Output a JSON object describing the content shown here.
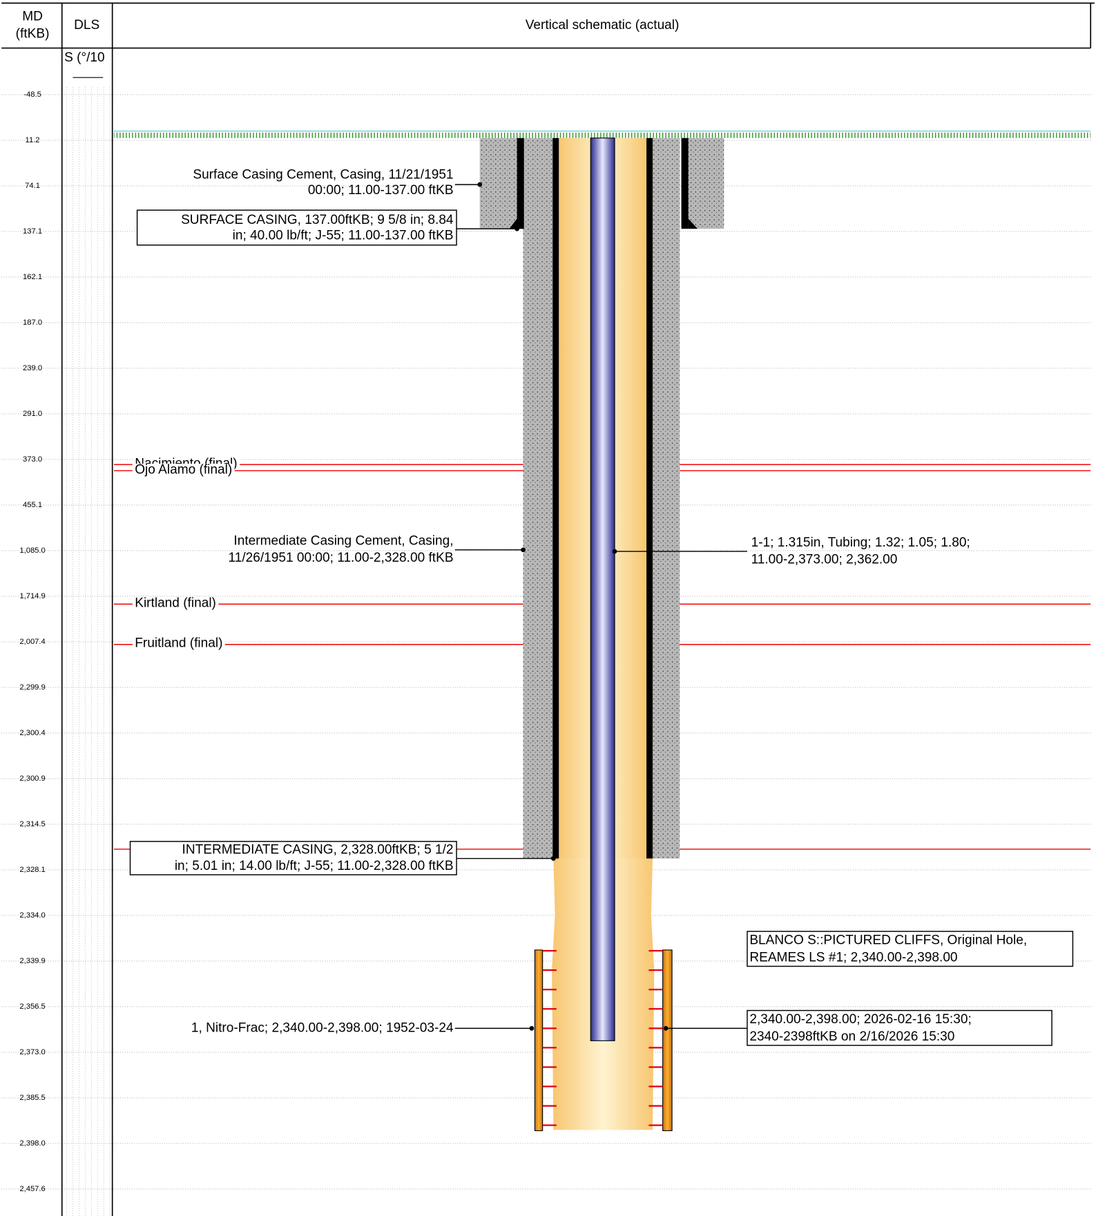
{
  "header": {
    "md_label": [
      "MD",
      "(ftKB)"
    ],
    "dls_label": "DLS",
    "schematic_title": "Vertical schematic (actual)",
    "dls_subheader": "S (°/10"
  },
  "depths": [
    "-48.5",
    "11.2",
    "74.1",
    "137.1",
    "162.1",
    "187.0",
    "239.0",
    "291.0",
    "373.0",
    "455.1",
    "1,085.0",
    "1,714.9",
    "2,007.4",
    "2,299.9",
    "2,300.4",
    "2,300.9",
    "2,314.5",
    "2,328.1",
    "2,334.0",
    "2,339.9",
    "2,356.5",
    "2,373.0",
    "2,385.5",
    "2,398.0",
    "2,457.6"
  ],
  "formations": [
    "Nacimiento (final)",
    "Ojo Alamo (final)",
    "Kirtland (final)",
    "Fruitland (final)"
  ],
  "annotations": {
    "surface_cement": [
      "Surface Casing Cement, Casing, 11/21/1951",
      "00:00; 11.00-137.00 ftKB"
    ],
    "surface_casing": [
      "SURFACE CASING, 137.00ftKB; 9 5/8 in; 8.84",
      "in; 40.00 lb/ft; J-55; 11.00-137.00 ftKB"
    ],
    "intermediate_cement": [
      "Intermediate Casing Cement, Casing,",
      "11/26/1951 00:00; 11.00-2,328.00 ftKB"
    ],
    "tubing": [
      "1-1; 1.315in, Tubing; 1.32; 1.05; 1.80;",
      "11.00-2,373.00; 2,362.00"
    ],
    "intermediate_casing": [
      "INTERMEDIATE CASING, 2,328.00ftKB; 5 1/2",
      "in; 5.01 in; 14.00 lb/ft; J-55; 11.00-2,328.00 ftKB"
    ],
    "zone": [
      "BLANCO S::PICTURED CLIFFS, Original Hole,",
      "REAMES LS #1; 2,340.00-2,398.00"
    ],
    "stimulation": [
      "1, Nitro-Frac; 2,340.00-2,398.00; 1952-03-24"
    ],
    "perforation": [
      "2,340.00-2,398.00; 2026-02-16 15:30;",
      "2340-2398ftKB on 2/16/2026 15:30"
    ]
  }
}
